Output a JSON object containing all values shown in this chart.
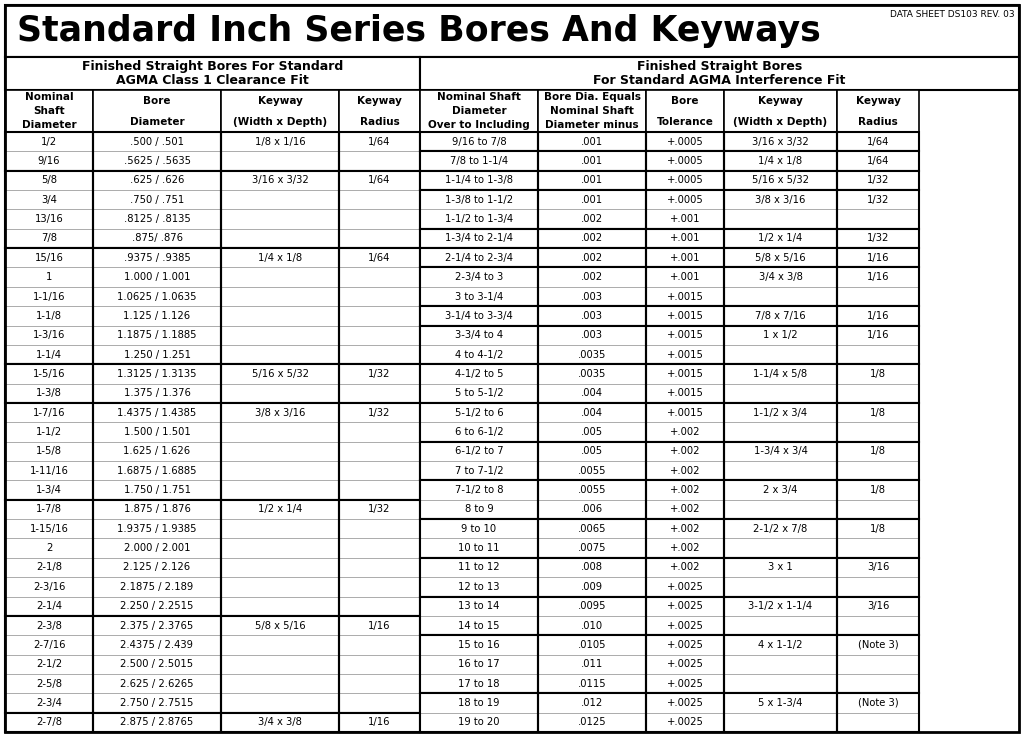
{
  "title": "Standard Inch Series Bores And Keyways",
  "data_sheet": "DATA SHEET DS103 REV. 03",
  "left_header1": "Finished Straight Bores For Standard",
  "left_header2": "AGMA Class 1 Clearance Fit",
  "right_header1": "Finished Straight Bores",
  "right_header2": "For Standard AGMA Interference Fit",
  "left_col_headers": [
    "Nominal\nShaft\nDiameter",
    "Bore\nDiameter",
    "Keyway\n(Width x Depth)",
    "Keyway\nRadius"
  ],
  "right_col_headers": [
    "Nominal Shaft\nDiameter\nOver to Including",
    "Bore Dia. Equals\nNominal Shaft\nDiameter minus",
    "Bore\nTolerance",
    "Keyway\n(Width x Depth)",
    "Keyway\nRadius"
  ],
  "left_groups": [
    {
      "rows": [
        [
          "1/2",
          ".500 / .501",
          "1/8 x 1/16",
          "1/64"
        ],
        [
          "9/16",
          ".5625 / .5635",
          "",
          ""
        ]
      ]
    },
    {
      "rows": [
        [
          "5/8",
          ".625 / .626",
          "3/16 x 3/32",
          "1/64"
        ],
        [
          "3/4",
          ".750 / .751",
          "",
          ""
        ],
        [
          "13/16",
          ".8125 / .8135",
          "",
          ""
        ],
        [
          "7/8",
          ".875/ .876",
          "",
          ""
        ]
      ]
    },
    {
      "rows": [
        [
          "15/16",
          ".9375 / .9385",
          "1/4 x 1/8",
          "1/64"
        ],
        [
          "1",
          "1.000 / 1.001",
          "",
          ""
        ],
        [
          "1-1/16",
          "1.0625 / 1.0635",
          "",
          ""
        ],
        [
          "1-1/8",
          "1.125 / 1.126",
          "",
          ""
        ],
        [
          "1-3/16",
          "1.1875 / 1.1885",
          "",
          ""
        ],
        [
          "1-1/4",
          "1.250 / 1.251",
          "",
          ""
        ]
      ]
    },
    {
      "rows": [
        [
          "1-5/16",
          "1.3125 / 1.3135",
          "5/16 x 5/32",
          "1/32"
        ],
        [
          "1-3/8",
          "1.375 / 1.376",
          "",
          ""
        ]
      ]
    },
    {
      "rows": [
        [
          "1-7/16",
          "1.4375 / 1.4385",
          "3/8 x 3/16",
          "1/32"
        ],
        [
          "1-1/2",
          "1.500 / 1.501",
          "",
          ""
        ],
        [
          "1-5/8",
          "1.625 / 1.626",
          "",
          ""
        ],
        [
          "1-11/16",
          "1.6875 / 1.6885",
          "",
          ""
        ],
        [
          "1-3/4",
          "1.750 / 1.751",
          "",
          ""
        ]
      ]
    },
    {
      "rows": [
        [
          "1-7/8",
          "1.875 / 1.876",
          "1/2 x 1/4",
          "1/32"
        ],
        [
          "1-15/16",
          "1.9375 / 1.9385",
          "",
          ""
        ],
        [
          "2",
          "2.000 / 2.001",
          "",
          ""
        ],
        [
          "2-1/8",
          "2.125 / 2.126",
          "",
          ""
        ],
        [
          "2-3/16",
          "2.1875 / 2.189",
          "",
          ""
        ],
        [
          "2-1/4",
          "2.250 / 2.2515",
          "",
          ""
        ]
      ]
    },
    {
      "rows": [
        [
          "2-3/8",
          "2.375 / 2.3765",
          "5/8 x 5/16",
          "1/16"
        ],
        [
          "2-7/16",
          "2.4375 / 2.439",
          "",
          ""
        ],
        [
          "2-1/2",
          "2.500 / 2.5015",
          "",
          ""
        ],
        [
          "2-5/8",
          "2.625 / 2.6265",
          "",
          ""
        ],
        [
          "2-3/4",
          "2.750 / 2.7515",
          "",
          ""
        ]
      ]
    },
    {
      "rows": [
        [
          "2-7/8",
          "2.875 / 2.8765",
          "3/4 x 3/8",
          "1/16"
        ]
      ]
    }
  ],
  "right_groups": [
    {
      "rows": [
        [
          "9/16 to 7/8",
          ".001",
          "+.0005",
          "3/16 x 3/32",
          "1/64"
        ]
      ]
    },
    {
      "rows": [
        [
          "7/8 to 1-1/4",
          ".001",
          "+.0005",
          "1/4 x 1/8",
          "1/64"
        ]
      ]
    },
    {
      "rows": [
        [
          "1-1/4 to 1-3/8",
          ".001",
          "+.0005",
          "5/16 x 5/32",
          "1/32"
        ]
      ]
    },
    {
      "rows": [
        [
          "1-3/8 to 1-1/2",
          ".001",
          "+.0005",
          "3/8 x 3/16",
          "1/32"
        ],
        [
          "1-1/2 to 1-3/4",
          ".002",
          "+.001",
          "",
          ""
        ]
      ]
    },
    {
      "rows": [
        [
          "1-3/4 to 2-1/4",
          ".002",
          "+.001",
          "1/2 x 1/4",
          "1/32"
        ]
      ]
    },
    {
      "rows": [
        [
          "2-1/4 to 2-3/4",
          ".002",
          "+.001",
          "5/8 x 5/16",
          "1/16"
        ]
      ]
    },
    {
      "rows": [
        [
          "2-3/4 to 3",
          ".002",
          "+.001",
          "3/4 x 3/8",
          "1/16"
        ],
        [
          "3 to 3-1/4",
          ".003",
          "+.0015",
          "",
          ""
        ]
      ]
    },
    {
      "rows": [
        [
          "3-1/4 to 3-3/4",
          ".003",
          "+.0015",
          "7/8 x 7/16",
          "1/16"
        ]
      ]
    },
    {
      "rows": [
        [
          "3-3/4 to 4",
          ".003",
          "+.0015",
          "1 x 1/2",
          "1/16"
        ],
        [
          "4 to 4-1/2",
          ".0035",
          "+.0015",
          "",
          ""
        ]
      ]
    },
    {
      "rows": [
        [
          "4-1/2 to 5",
          ".0035",
          "+.0015",
          "1-1/4 x 5/8",
          "1/8"
        ],
        [
          "5 to 5-1/2",
          ".004",
          "+.0015",
          "",
          ""
        ]
      ]
    },
    {
      "rows": [
        [
          "5-1/2 to 6",
          ".004",
          "+.0015",
          "1-1/2 x 3/4",
          "1/8"
        ],
        [
          "6 to 6-1/2",
          ".005",
          "+.002",
          "",
          ""
        ]
      ]
    },
    {
      "rows": [
        [
          "6-1/2 to 7",
          ".005",
          "+.002",
          "1-3/4 x 3/4",
          "1/8"
        ],
        [
          "7 to 7-1/2",
          ".0055",
          "+.002",
          "",
          ""
        ]
      ]
    },
    {
      "rows": [
        [
          "7-1/2 to 8",
          ".0055",
          "+.002",
          "2 x 3/4",
          "1/8"
        ],
        [
          "8 to 9",
          ".006",
          "+.002",
          "",
          ""
        ]
      ]
    },
    {
      "rows": [
        [
          "9 to 10",
          ".0065",
          "+.002",
          "2-1/2 x 7/8",
          "1/8"
        ],
        [
          "10 to 11",
          ".0075",
          "+.002",
          "",
          ""
        ]
      ]
    },
    {
      "rows": [
        [
          "11 to 12",
          ".008",
          "+.002",
          "3 x 1",
          "3/16"
        ],
        [
          "12 to 13",
          ".009",
          "+.0025",
          "",
          ""
        ]
      ]
    },
    {
      "rows": [
        [
          "13 to 14",
          ".0095",
          "+.0025",
          "3-1/2 x 1-1/4",
          "3/16"
        ],
        [
          "14 to 15",
          ".010",
          "+.0025",
          "",
          ""
        ]
      ]
    },
    {
      "rows": [
        [
          "15 to 16",
          ".0105",
          "+.0025",
          "4 x 1-1/2",
          "(Note 3)"
        ],
        [
          "16 to 17",
          ".011",
          "+.0025",
          "",
          ""
        ],
        [
          "17 to 18",
          ".0115",
          "+.0025",
          "",
          ""
        ]
      ]
    },
    {
      "rows": [
        [
          "18 to 19",
          ".012",
          "+.0025",
          "5 x 1-3/4",
          "(Note 3)"
        ],
        [
          "19 to 20",
          ".0125",
          "+.0025",
          "",
          ""
        ]
      ]
    }
  ],
  "bg_color": "#ffffff"
}
